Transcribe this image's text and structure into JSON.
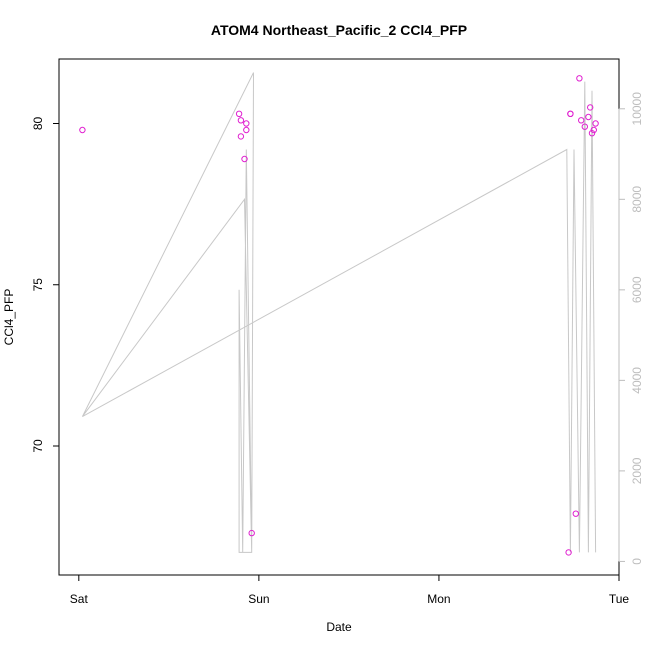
{
  "chart_data": {
    "type": "scatter",
    "title": "ATOM4 Northeast_Pacific_2 CCl4_PFP",
    "xlabel": "Date",
    "ylabel": "CCl4_PFP",
    "x_ticks": [
      {
        "label": "Sat",
        "value": 0
      },
      {
        "label": "Sun",
        "value": 1
      },
      {
        "label": "Mon",
        "value": 2
      },
      {
        "label": "Tue",
        "value": 3
      }
    ],
    "xlim": [
      -0.11,
      3.0
    ],
    "ylim": [
      66.0,
      82.0
    ],
    "y_ticks": [
      70,
      75,
      80
    ],
    "y2lim": [
      -300,
      11100
    ],
    "y2_ticks": [
      0,
      2000,
      4000,
      6000,
      8000,
      10000
    ],
    "colors": {
      "points": "#e020d0",
      "line": "#c8c8c8",
      "right_axis": "#bdbdbd"
    },
    "series": [
      {
        "values": [
          {
            "x": 0.02,
            "y": 79.8
          },
          {
            "x": 0.89,
            "y": 80.3
          },
          {
            "x": 0.9,
            "y": 80.1
          },
          {
            "x": 0.9,
            "y": 79.6
          },
          {
            "x": 0.92,
            "y": 78.9
          },
          {
            "x": 0.93,
            "y": 79.8
          },
          {
            "x": 0.93,
            "y": 80.0
          },
          {
            "x": 0.96,
            "y": 67.3
          },
          {
            "x": 2.72,
            "y": 66.7
          },
          {
            "x": 2.73,
            "y": 80.3
          },
          {
            "x": 2.73,
            "y": 80.3
          },
          {
            "x": 2.76,
            "y": 67.9
          },
          {
            "x": 2.78,
            "y": 81.4
          },
          {
            "x": 2.79,
            "y": 80.1
          },
          {
            "x": 2.81,
            "y": 79.9
          },
          {
            "x": 2.83,
            "y": 80.2
          },
          {
            "x": 2.84,
            "y": 80.5
          },
          {
            "x": 2.85,
            "y": 79.7
          },
          {
            "x": 2.86,
            "y": 79.8
          },
          {
            "x": 2.87,
            "y": 80.0
          }
        ]
      },
      {
        "axis": "right",
        "values": [
          {
            "x": 0.02,
            "y": 3200
          },
          {
            "x": 0.97,
            "y": 10800
          },
          {
            "x": 0.96,
            "y": 200
          },
          {
            "x": 0.93,
            "y": 9100
          },
          {
            "x": 0.91,
            "y": 200
          },
          {
            "x": 0.89,
            "y": 6000
          },
          {
            "x": 0.89,
            "y": 200
          },
          {
            "x": 0.96,
            "y": 200
          },
          {
            "x": 0.92,
            "y": 8000
          },
          {
            "x": 0.02,
            "y": 3200
          },
          {
            "x": 2.71,
            "y": 9100
          },
          {
            "x": 2.73,
            "y": 200
          },
          {
            "x": 2.75,
            "y": 9100
          },
          {
            "x": 2.78,
            "y": 200
          },
          {
            "x": 2.81,
            "y": 10600
          },
          {
            "x": 2.83,
            "y": 200
          },
          {
            "x": 2.85,
            "y": 10400
          },
          {
            "x": 2.87,
            "y": 200
          }
        ]
      }
    ]
  }
}
